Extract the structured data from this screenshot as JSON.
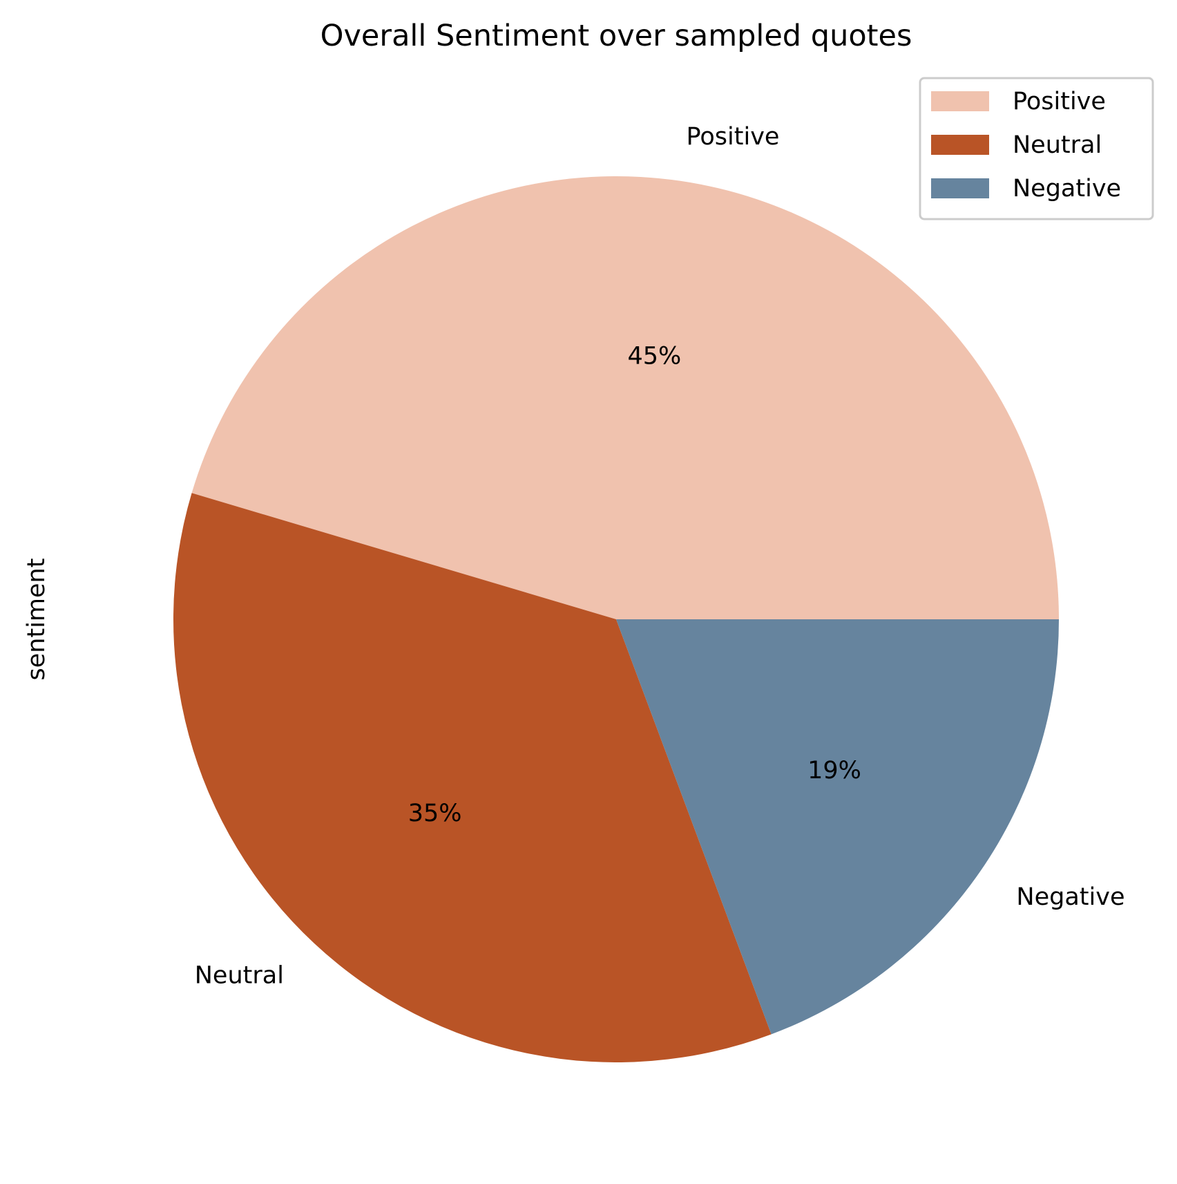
{
  "chart_data": {
    "type": "pie",
    "title": "Overall Sentiment over sampled quotes",
    "ylabel": "sentiment",
    "slices": [
      {
        "label": "Positive",
        "value": 45.4,
        "pct_label": "45%",
        "color": "#f0c2ae"
      },
      {
        "label": "Neutral",
        "value": 35.3,
        "pct_label": "35%",
        "color": "#b95426"
      },
      {
        "label": "Negative",
        "value": 19.3,
        "pct_label": "19%",
        "color": "#66849e"
      }
    ],
    "legend": {
      "placement": "top-right",
      "entries": [
        "Positive",
        "Neutral",
        "Negative"
      ]
    }
  }
}
